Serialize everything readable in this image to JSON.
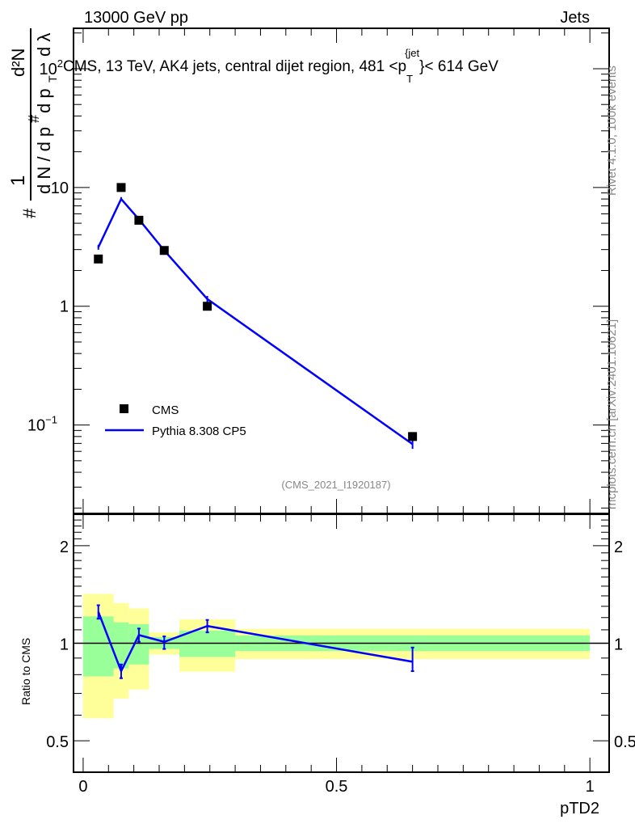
{
  "header": {
    "left": "13000 GeV pp",
    "right": "Jets"
  },
  "side_labels": {
    "rivet": "Rivet 4.1.0,  100k events",
    "mcplots": "mcplots.cern.ch [arXiv:2401.10621]"
  },
  "analysis_id": "(CMS_2021_I1920187)",
  "colors": {
    "mc": "#0000ff",
    "data": "#000000",
    "band_total": "#ffff99",
    "band_stat": "#99ff99"
  },
  "chart_data": [
    {
      "type": "scatter",
      "title": "CMS, 13 TeV, AK4 jets, central dijet region, 481 <p_T^{jet}< 614 GeV",
      "title_parts": {
        "pre": "CMS, 13 TeV, AK4 jets, central dijet region, 481 <p",
        "sub": "T",
        "sup": "{jet",
        "post": "}< 614 GeV"
      },
      "ylabel": "1/N dN/dp_T · d²N/dp_T dλ",
      "ylabel_parts": {
        "hash1": "#",
        "one": "1",
        "dn": "d N / d p",
        "t": "T",
        "hash2": "#",
        "dp": "d p",
        "d2n": "d²N",
        "dl": "d λ"
      },
      "yscale": "log",
      "xlim": [
        -0.019,
        1.038
      ],
      "ylim": [
        0.018,
        219
      ],
      "yticks": [
        {
          "v": 100,
          "base": "10",
          "exp": "2"
        },
        {
          "v": 10,
          "base": "10",
          "exp": ""
        },
        {
          "v": 1,
          "base": "1",
          "exp": ""
        },
        {
          "v": 0.1,
          "base": "10",
          "exp": "−1"
        }
      ],
      "bin_edges": [
        0,
        0.06,
        0.09,
        0.13,
        0.19,
        0.3,
        1.0
      ],
      "x": [
        0.03,
        0.075,
        0.11,
        0.16,
        0.245,
        0.65
      ],
      "series": [
        {
          "name": "CMS",
          "style": "markers",
          "values": [
            2.5,
            10.0,
            5.3,
            2.95,
            1.0,
            0.08
          ]
        },
        {
          "name": "Pythia 8.308 CP5",
          "style": "line",
          "values": [
            3.14,
            8.0,
            5.4,
            2.95,
            1.15,
            0.069
          ],
          "err": [
            0.15,
            0.3,
            0.25,
            0.12,
            0.07,
            0.006
          ]
        }
      ],
      "legend": {
        "placement": "bottom-left",
        "entries": [
          "CMS",
          "Pythia 8.308 CP5"
        ]
      }
    },
    {
      "type": "line",
      "ylabel": "Ratio to CMS",
      "xlabel": "pTD2",
      "yscale": "log",
      "xlim": [
        -0.019,
        1.038
      ],
      "ylim": [
        0.4,
        2.5
      ],
      "yticks": [
        {
          "v": 2,
          "label": "2"
        },
        {
          "v": 1,
          "label": "1"
        },
        {
          "v": 0.5,
          "label": "0.5"
        }
      ],
      "xticks": [
        {
          "v": 0,
          "label": "0"
        },
        {
          "v": 0.5,
          "label": "0.5"
        },
        {
          "v": 1,
          "label": "1"
        }
      ],
      "bin_edges": [
        0,
        0.06,
        0.09,
        0.13,
        0.19,
        0.3,
        1.0
      ],
      "band_total": {
        "up": [
          1.42,
          1.33,
          1.28,
          1.08,
          1.185,
          1.108
        ],
        "down": [
          0.587,
          0.675,
          0.72,
          0.923,
          0.817,
          0.894
        ]
      },
      "band_stat": {
        "up": [
          1.21,
          1.16,
          1.145,
          1.045,
          1.094,
          1.057
        ],
        "down": [
          0.79,
          0.836,
          0.86,
          0.96,
          0.907,
          0.946
        ]
      },
      "x": [
        0.03,
        0.075,
        0.11,
        0.16,
        0.245,
        0.65
      ],
      "series": [
        {
          "name": "Pythia 8.308 CP5",
          "values": [
            1.25,
            0.82,
            1.06,
            1.01,
            1.13,
            0.877
          ],
          "err_up": [
            1.31,
            0.86,
            1.11,
            1.05,
            1.18,
            0.97
          ],
          "err_down": [
            1.19,
            0.78,
            1.01,
            0.96,
            1.08,
            0.82
          ]
        }
      ]
    }
  ]
}
